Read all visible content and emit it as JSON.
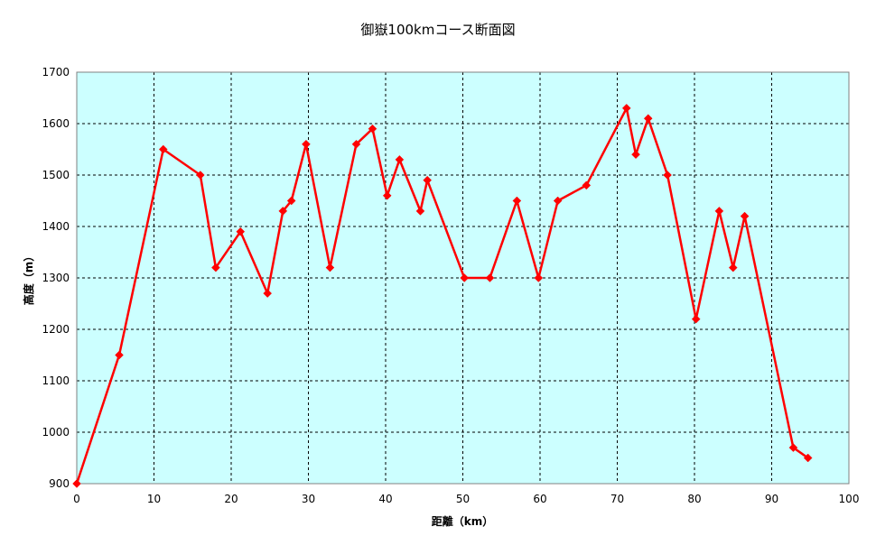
{
  "chart_data": {
    "type": "line",
    "title": "御嶽100kmコース断面図",
    "xlabel": "距離（km）",
    "ylabel": "高度（m）",
    "xlim": [
      0,
      100
    ],
    "ylim": [
      900,
      1700
    ],
    "x_ticks": [
      0,
      10,
      20,
      30,
      40,
      50,
      60,
      70,
      80,
      90,
      100
    ],
    "y_ticks": [
      900,
      1000,
      1100,
      1200,
      1300,
      1400,
      1500,
      1600,
      1700
    ],
    "grid": true,
    "legend": "none",
    "colors": {
      "plot_background": "#ccffff",
      "line": "#ff0000",
      "grid": "#000000"
    },
    "series": [
      {
        "x": [
          0,
          5.5,
          11.2,
          16,
          18,
          21.2,
          24.7,
          26.7,
          27.8,
          29.7,
          32.8,
          36.2,
          38.3,
          40.2,
          41.8,
          44.5,
          45.4,
          50.2,
          53.5,
          57,
          59.8,
          62.3,
          66,
          71.2,
          72.4,
          74,
          76.5,
          80.2,
          83.2,
          85,
          86.5,
          92.8,
          94.7
        ],
        "y": [
          900,
          1150,
          1550,
          1500,
          1320,
          1390,
          1270,
          1430,
          1450,
          1560,
          1320,
          1560,
          1590,
          1460,
          1530,
          1430,
          1490,
          1300,
          1300,
          1450,
          1300,
          1450,
          1480,
          1630,
          1540,
          1610,
          1500,
          1220,
          1430,
          1320,
          1420,
          970,
          950
        ]
      }
    ]
  }
}
